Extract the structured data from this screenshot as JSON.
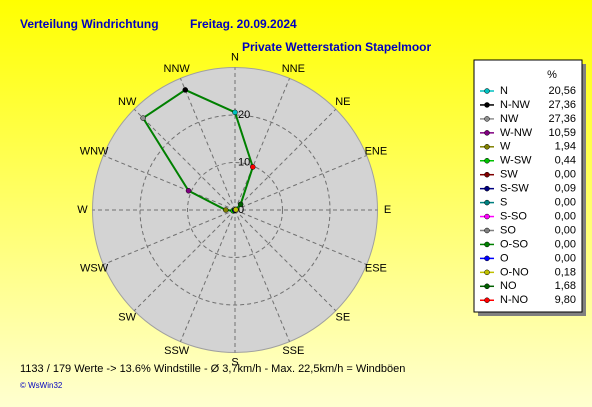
{
  "chart_data": {
    "type": "radar",
    "title": "Verteilung Windrichtung",
    "date": "Freitag. 20.09.2024",
    "subtitle": "Private Wetterstation Stapelmoor",
    "categories": [
      "N",
      "NNE",
      "NE",
      "ENE",
      "E",
      "ESE",
      "SE",
      "SSE",
      "S",
      "SSW",
      "SW",
      "WSW",
      "W",
      "WNW",
      "NW",
      "NNW"
    ],
    "rlim": [
      0,
      30
    ],
    "rticks": [
      0,
      10,
      20
    ],
    "grid": true,
    "legend_title": "%",
    "legend_names": [
      "N",
      "N-NW",
      "NW",
      "W-NW",
      "W",
      "W-SW",
      "SW",
      "S-SW",
      "S",
      "S-SO",
      "SO",
      "O-SO",
      "O",
      "O-NO",
      "NO",
      "N-NO"
    ],
    "marker_colors": [
      "#00c0c0",
      "#000000",
      "#909090",
      "#800080",
      "#808000",
      "#00c000",
      "#800000",
      "#000080",
      "#008080",
      "#ff00ff",
      "#808080",
      "#008000",
      "#0000ff",
      "#c0c000",
      "#006000",
      "#ff0000"
    ],
    "series": [
      {
        "color": "#008000",
        "values": [
          20.56,
          27.36,
          27.36,
          10.59,
          1.94,
          0.44,
          0,
          0.09,
          0,
          0,
          0,
          0,
          0,
          0.18,
          1.68,
          9.8
        ],
        "value_labels": [
          "20,56",
          "27,36",
          "27,36",
          "10,59",
          "1,94",
          "0,44",
          "0,00",
          "0,09",
          "0,00",
          "0,00",
          "0,00",
          "0,00",
          "0,00",
          "0,18",
          "1,68",
          "9,80"
        ]
      }
    ],
    "footer": "1133 / 179 Werte  -> 13.6% Windstille   -   Ø 3,7km/h  -  Max. 22,5km/h = Windböen",
    "credit": "© WsWin32"
  }
}
